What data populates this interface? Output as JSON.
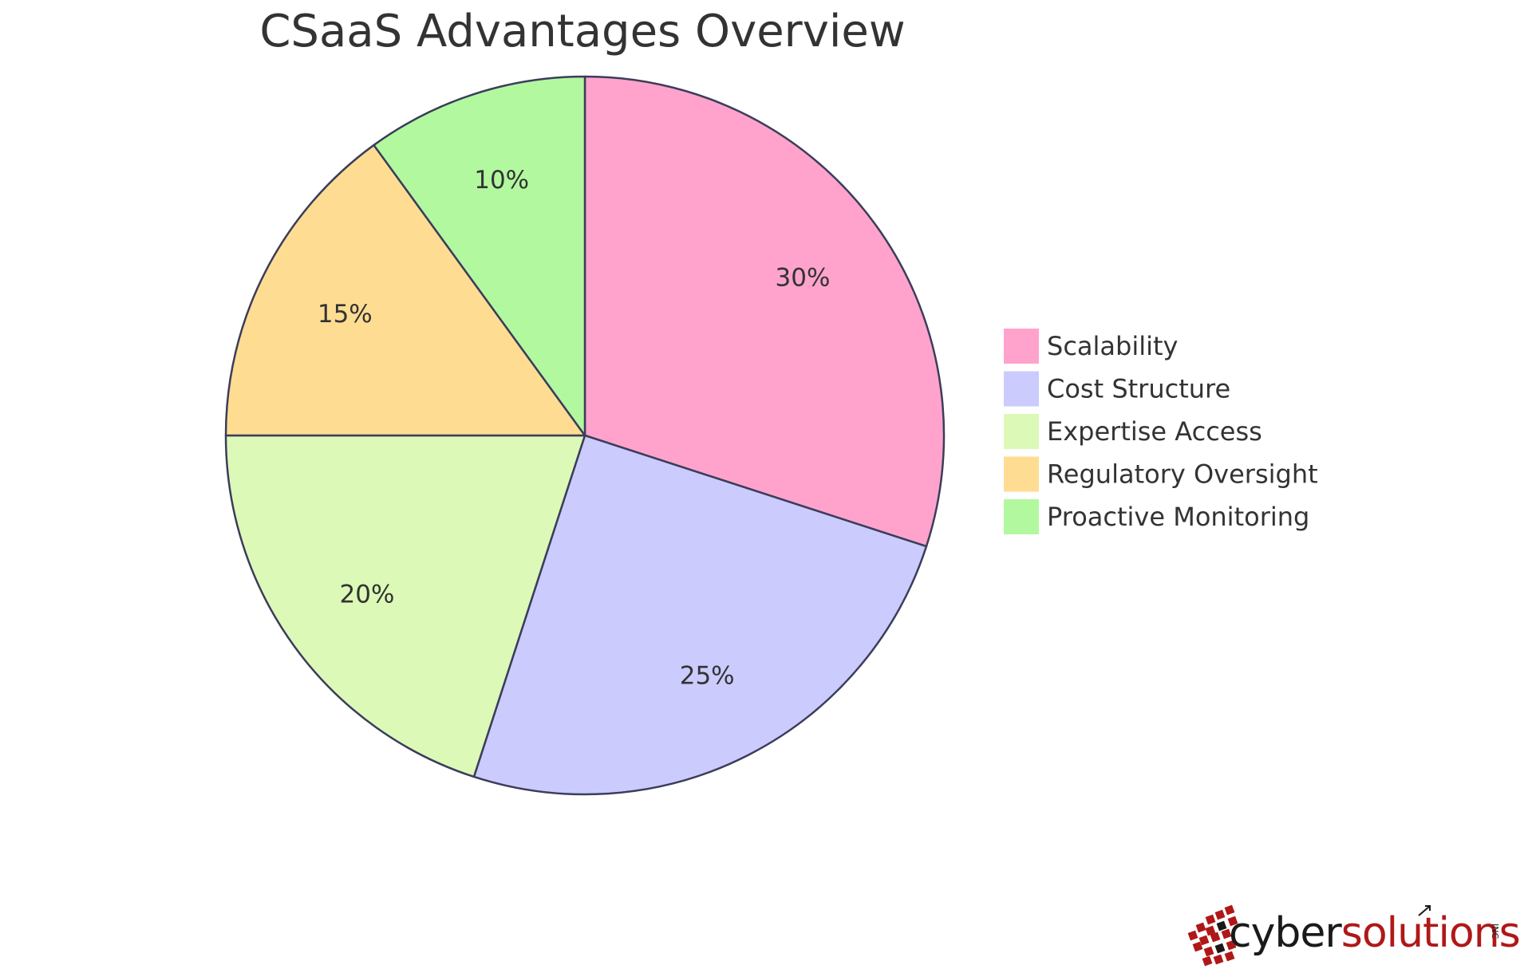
{
  "chart_data": {
    "type": "pie",
    "title": "CSaaS Advantages Overview",
    "legend_position": "right",
    "slices": [
      {
        "label": "Scalability",
        "value": 30,
        "display": "30%",
        "color": "#ffa3cc"
      },
      {
        "label": "Cost Structure",
        "value": 25,
        "display": "25%",
        "color": "#cbcbfe"
      },
      {
        "label": "Expertise Access",
        "value": 20,
        "display": "20%",
        "color": "#dcf9b7"
      },
      {
        "label": "Regulatory Oversight",
        "value": 15,
        "display": "15%",
        "color": "#fedd93"
      },
      {
        "label": "Proactive Monitoring",
        "value": 10,
        "display": "10%",
        "color": "#b2f89f"
      }
    ]
  },
  "logo": {
    "part1": "cyber",
    "part2": "solutions",
    "suffix": "INC",
    "colors": {
      "dark": "#1a1a1a",
      "accent": "#b01818"
    }
  }
}
